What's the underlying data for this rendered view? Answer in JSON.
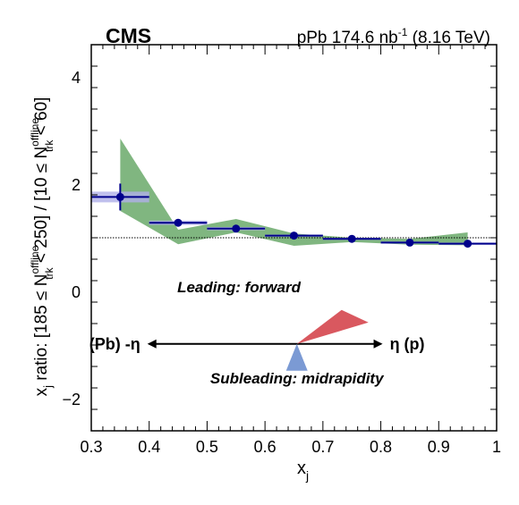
{
  "chart_data": {
    "type": "scatter",
    "experiment": "CMS",
    "luminosity_label": "pPb 174.6 nb",
    "luminosity_sup": "-1",
    "energy_label": "(8.16 TeV)",
    "xlabel": "x",
    "xlabel_sub": "j",
    "ylabel": "x_j ratio: [185 ≤ N_trk^offline < 250] / [10 ≤ N_trk^offline < 60]",
    "ylabel_parts": {
      "xj": "x",
      "xj_sub": "j",
      "p1": " ratio: [185 ≤ N",
      "sup": "offline",
      "sub": "trk",
      "p2": " < 250] / [10 ≤ N",
      "p3": " < 60]"
    },
    "xlim": [
      0.3,
      1.0
    ],
    "ylim": [
      -2.6,
      4.6
    ],
    "xticks": [
      0.3,
      0.4,
      0.5,
      0.6,
      0.7,
      0.8,
      0.9,
      1.0
    ],
    "xtick_labels": [
      "0.3",
      "0.4",
      "0.5",
      "0.6",
      "0.7",
      "0.8",
      "0.9",
      "1"
    ],
    "yticks": [
      -2,
      0,
      2,
      4
    ],
    "ytick_labels": [
      "−2",
      "0",
      "2",
      "4"
    ],
    "reference_line": 1.0,
    "points": [
      {
        "x": 0.35,
        "y": 1.76,
        "xlo": 0.3,
        "xhi": 0.4,
        "stat": 0.25,
        "sys": 0.1
      },
      {
        "x": 0.45,
        "y": 1.28,
        "xlo": 0.4,
        "xhi": 0.5,
        "stat": 0.04,
        "sys": 0.04
      },
      {
        "x": 0.55,
        "y": 1.17,
        "xlo": 0.5,
        "xhi": 0.6,
        "stat": 0.03,
        "sys": 0.03
      },
      {
        "x": 0.65,
        "y": 1.04,
        "xlo": 0.6,
        "xhi": 0.7,
        "stat": 0.02,
        "sys": 0.02
      },
      {
        "x": 0.75,
        "y": 0.98,
        "xlo": 0.7,
        "xhi": 0.8,
        "stat": 0.02,
        "sys": 0.02
      },
      {
        "x": 0.85,
        "y": 0.91,
        "xlo": 0.8,
        "xhi": 0.9,
        "stat": 0.02,
        "sys": 0.02
      },
      {
        "x": 0.95,
        "y": 0.89,
        "xlo": 0.9,
        "xhi": 1.0,
        "stat": 0.02,
        "sys": 0.02
      }
    ],
    "model_band": {
      "x": [
        0.35,
        0.45,
        0.55,
        0.65,
        0.75,
        0.85,
        0.95
      ],
      "lo": [
        1.5,
        0.88,
        1.1,
        0.85,
        0.92,
        0.87,
        0.86
      ],
      "hi": [
        2.85,
        1.15,
        1.35,
        1.08,
        1.0,
        0.98,
        1.1
      ]
    },
    "inset": {
      "leading_label": "Leading: forward",
      "subleading_label": "Subleading: midrapidity",
      "left_label": "(Pb) -η",
      "right_label": "η (p)"
    },
    "colors": {
      "points": "#00008b",
      "sys_box": "#b0b0e8",
      "model_band": "#6aa96a",
      "leading": "#d9585f",
      "subleading": "#7b9ad4"
    }
  }
}
